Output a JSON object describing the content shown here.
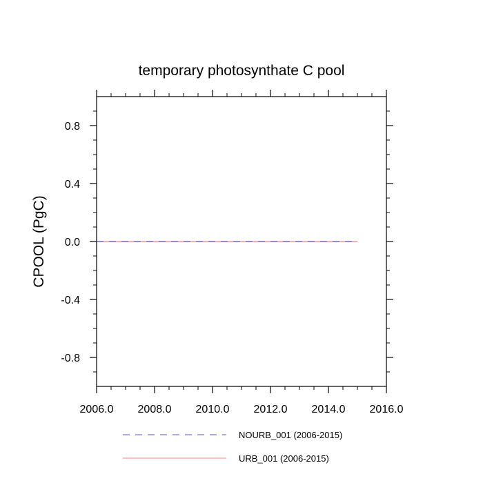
{
  "chart_data": {
    "type": "line",
    "title": "temporary photosynthate C pool",
    "xlabel": "",
    "ylabel": "CPOOL  (PgC)",
    "xlim": [
      2006.0,
      2016.0
    ],
    "ylim": [
      -1.0,
      1.0
    ],
    "x_ticks": [
      "2006.0",
      "2008.0",
      "2010.0",
      "2012.0",
      "2014.0",
      "2016.0"
    ],
    "y_ticks": [
      "0.8",
      "0.4",
      "0.0",
      "-0.4",
      "-0.8"
    ],
    "grid": false,
    "legend_position": "bottom",
    "series": [
      {
        "name": "NOURB_001 (2006-2015)",
        "color": "#5555cc",
        "style": "dashed",
        "x": [
          2006,
          2007,
          2008,
          2009,
          2010,
          2011,
          2012,
          2013,
          2014,
          2015
        ],
        "y": [
          0,
          0,
          0,
          0,
          0,
          0,
          0,
          0,
          0,
          0
        ]
      },
      {
        "name": "URB_001 (2006-2015)",
        "color": "#f08080",
        "style": "solid",
        "x": [
          2006,
          2007,
          2008,
          2009,
          2010,
          2011,
          2012,
          2013,
          2014,
          2015
        ],
        "y": [
          0,
          0,
          0,
          0,
          0,
          0,
          0,
          0,
          0,
          0
        ]
      }
    ]
  }
}
